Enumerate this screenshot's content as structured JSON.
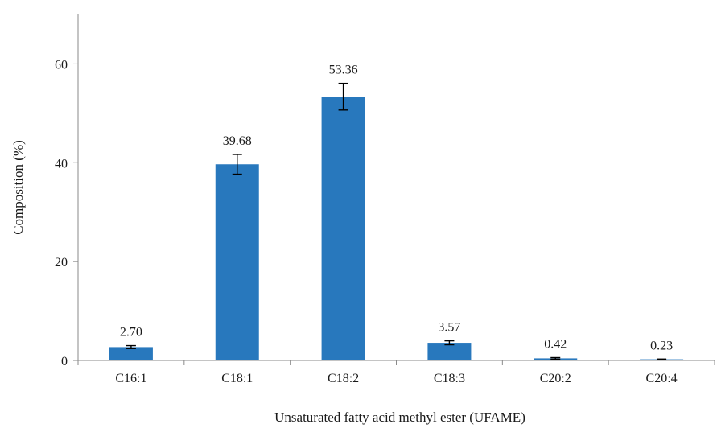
{
  "chart_data": {
    "type": "bar",
    "title": "",
    "xlabel": "Unsaturated fatty acid methyl ester (UFAME)",
    "ylabel": "Composition (%)",
    "categories": [
      "C16:1",
      "C18:1",
      "C18:2",
      "C18:3",
      "C20:2",
      "C20:4"
    ],
    "values": [
      2.7,
      39.68,
      53.36,
      3.57,
      0.42,
      0.23
    ],
    "value_labels": [
      "2.70",
      "39.68",
      "53.36",
      "3.57",
      "0.42",
      "0.23"
    ],
    "error": [
      0.3,
      2.0,
      2.7,
      0.4,
      0.15,
      0.05
    ],
    "ylim": [
      0,
      70
    ],
    "yticks": [
      0,
      20,
      40,
      60
    ],
    "ytick_labels": [
      "0",
      "20",
      "40",
      "60"
    ],
    "grid": false,
    "legend": "none",
    "bar_color": "#2878bd",
    "error_color": "#000000"
  }
}
